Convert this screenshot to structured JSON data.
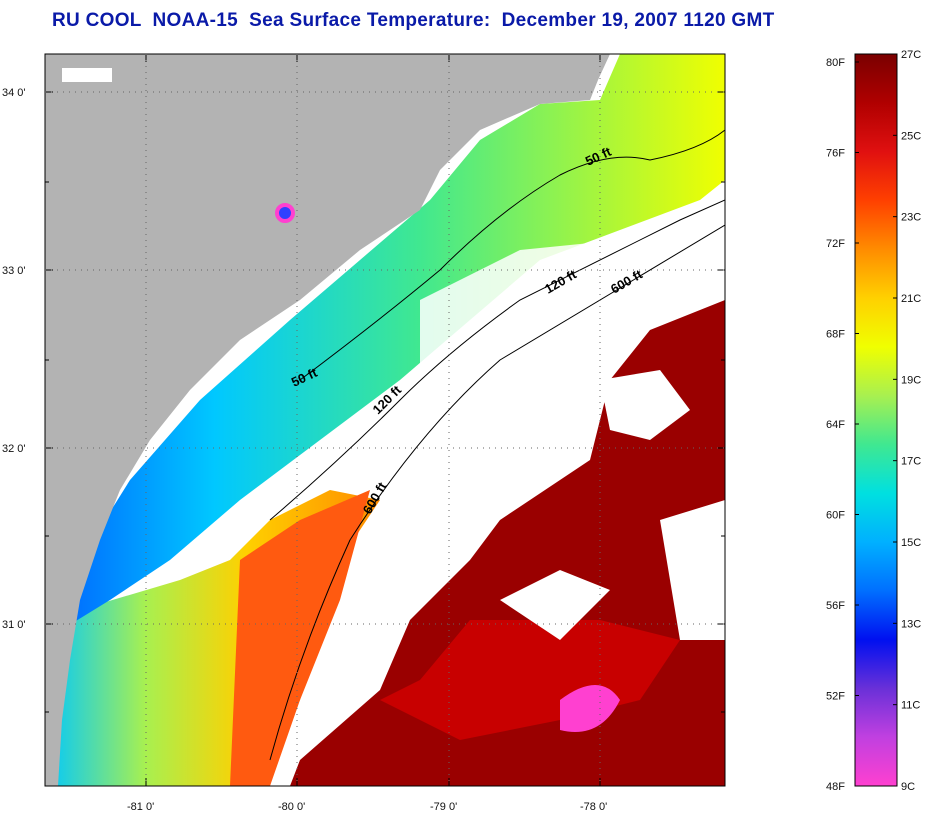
{
  "title": "RU COOL  NOAA-15  Sea Surface Temperature:  December 19, 2007 1120 GMT",
  "lat_labels": [
    "34 0'",
    "33 0'",
    "32 0'",
    "31 0'"
  ],
  "lon_labels": [
    "-81 0'",
    "-80 0'",
    "-79 0'",
    "-78 0'"
  ],
  "isobaths": [
    {
      "label": "50 ft"
    },
    {
      "label": "50 ft"
    },
    {
      "label": "120 ft"
    },
    {
      "label": "120 ft"
    },
    {
      "label": "600 ft"
    },
    {
      "label": "600 ft"
    }
  ],
  "colorbar": {
    "fahrenheit": [
      "80F",
      "76F",
      "72F",
      "68F",
      "64F",
      "60F",
      "56F",
      "52F",
      "48F"
    ],
    "celsius": [
      "27C",
      "25C",
      "23C",
      "21C",
      "19C",
      "17C",
      "15C",
      "13C",
      "11C",
      "9C"
    ],
    "stops": [
      "#7a0000",
      "#b00000",
      "#e01010",
      "#ff4000",
      "#ff8c00",
      "#ffd000",
      "#f0ff00",
      "#a8f050",
      "#40e890",
      "#00e0e0",
      "#00b0ff",
      "#0070ff",
      "#0010f0",
      "#6a30d8",
      "#c040e0",
      "#ff40d0"
    ]
  },
  "colors": {
    "land": "#b3b3b3",
    "cloud": "#ffffff",
    "title": "#0a1aa8"
  }
}
